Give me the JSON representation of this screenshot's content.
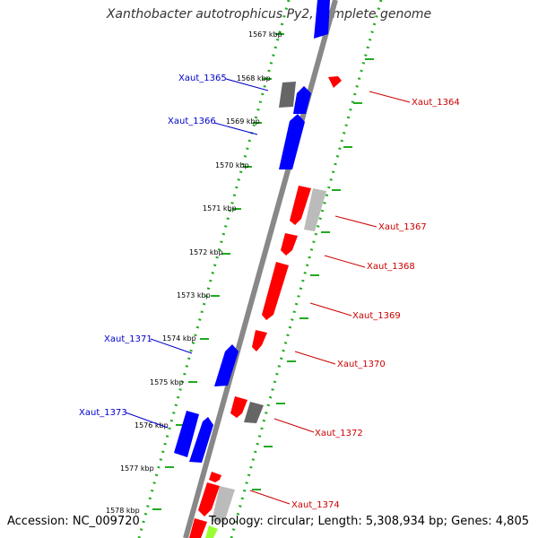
{
  "title": "Xanthobacter autotrophicus Py2, complete genome",
  "footer": {
    "accession": "Accession: NC_009720",
    "summary": "Topology: circular; Length: 5,308,934 bp; Genes: 4,805"
  },
  "colors": {
    "forward_gene": "#0000ff",
    "reverse_gene": "#ff0000",
    "forward_label": "#0000cc",
    "reverse_label": "#cc0000",
    "grey_gene": "#666666",
    "light_grey_gene": "#bbbbbb",
    "green_gene": "#99ff33",
    "ring_dots": "#22aa22"
  },
  "kbp_labels": [
    "1567 kbp",
    "1568 kbp",
    "1569 kbp",
    "1570 kbp",
    "1571 kbp",
    "1572 kbp",
    "1573 kbp",
    "1574 kbp",
    "1575 kbp",
    "1576 kbp",
    "1577 kbp",
    "1578 kbp"
  ],
  "gene_labels_forward": [
    "Xaut_1365",
    "Xaut_1366",
    "Xaut_1371",
    "Xaut_1373"
  ],
  "gene_labels_reverse": [
    "Xaut_1364",
    "Xaut_1367",
    "Xaut_1368",
    "Xaut_1369",
    "Xaut_1370",
    "Xaut_1372",
    "Xaut_1374"
  ]
}
